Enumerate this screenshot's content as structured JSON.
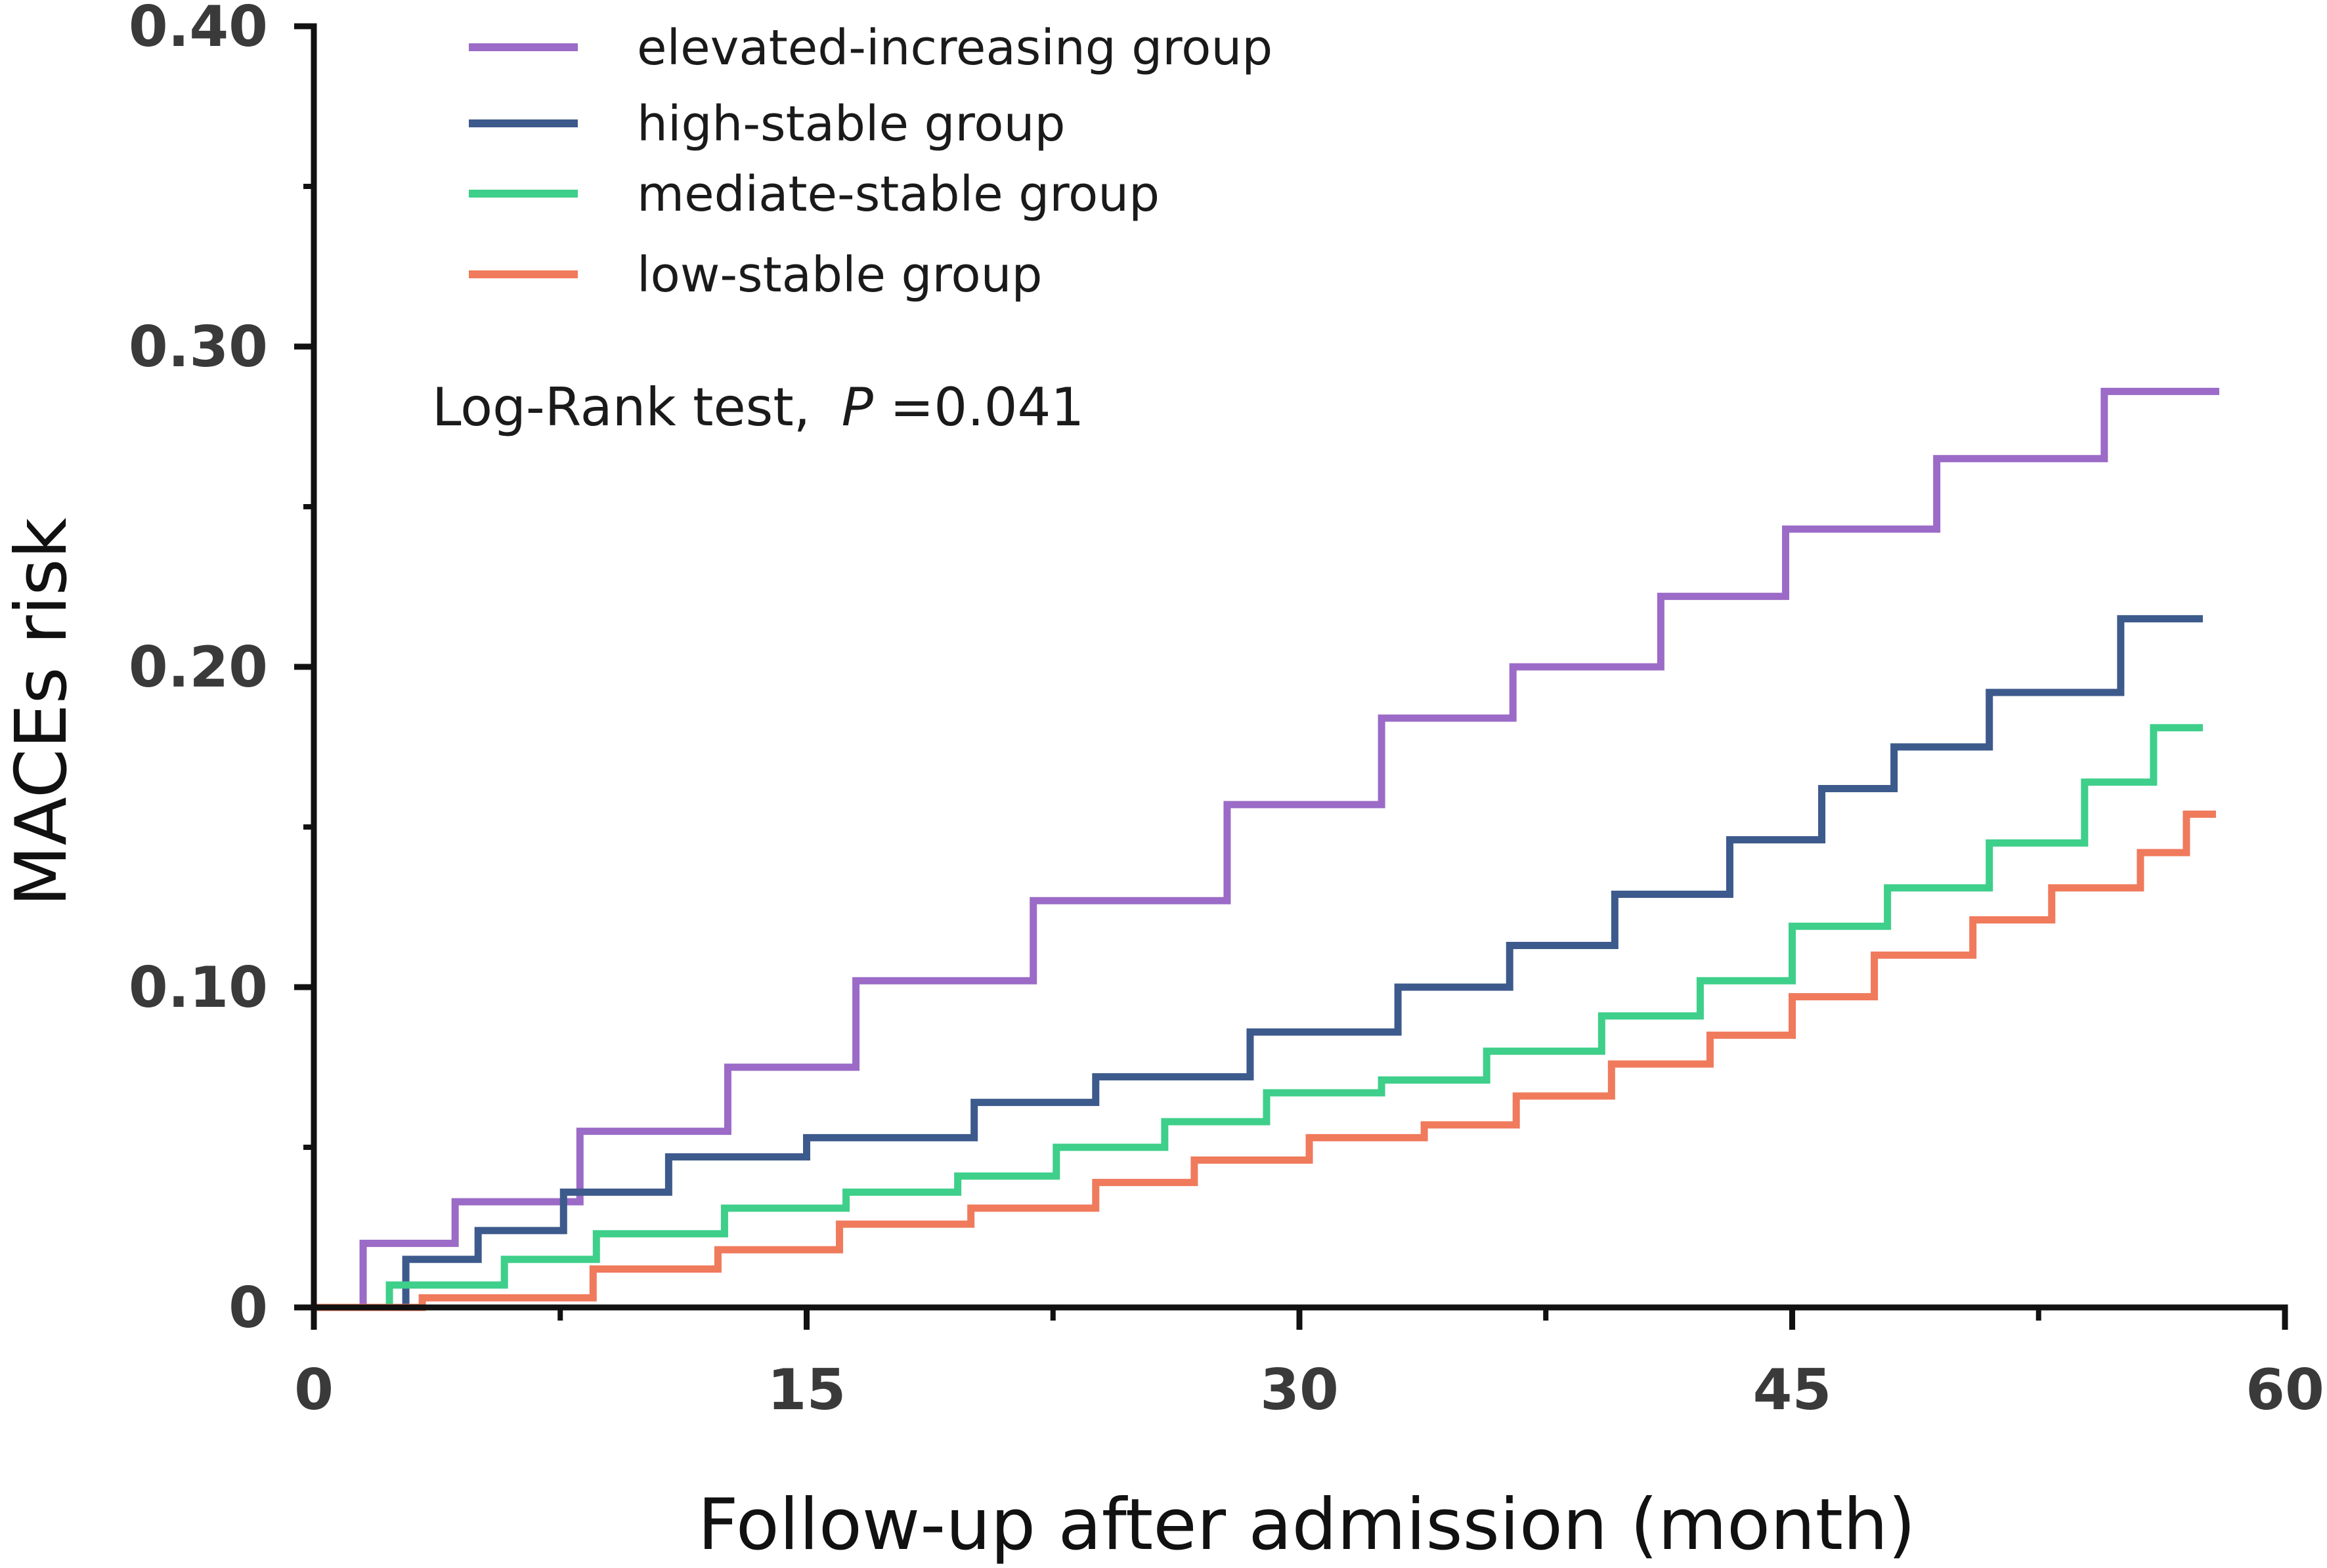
{
  "chart_data": {
    "type": "line",
    "step": true,
    "title": "",
    "xlabel": "Follow-up after admission (month)",
    "ylabel": "MACEs risk",
    "xlim": [
      0,
      60
    ],
    "ylim": [
      0,
      0.4
    ],
    "x_ticks": [
      0,
      15,
      30,
      45,
      60
    ],
    "x_tick_labels": [
      "0",
      "15",
      "30",
      "45",
      "60"
    ],
    "y_ticks": [
      0,
      0.1,
      0.2,
      0.3,
      0.4
    ],
    "y_tick_labels": [
      "0",
      "0.10",
      "0.20",
      "0.30",
      "0.40"
    ],
    "grid": false,
    "legend_position": "top-left",
    "annotation": {
      "prefix": "Log-Rank test,",
      "p_symbol": "P",
      "p_value": "=0.041"
    },
    "series": [
      {
        "name": "elevated-increasing group",
        "color": "#9b6bc7",
        "x": [
          0,
          1.5,
          4.3,
          8.1,
          12.6,
          16.5,
          21.9,
          27.8,
          32.5,
          36.5,
          41.0,
          44.8,
          49.4,
          54.5,
          58.0
        ],
        "y": [
          0,
          0.02,
          0.033,
          0.055,
          0.075,
          0.102,
          0.127,
          0.157,
          0.184,
          0.2,
          0.222,
          0.243,
          0.265,
          0.286,
          0.286
        ]
      },
      {
        "name": "high-stable group",
        "color": "#3d5a8c",
        "x": [
          0,
          2.8,
          5.0,
          7.6,
          10.8,
          15.0,
          20.1,
          23.8,
          28.5,
          33.0,
          36.4,
          39.6,
          43.1,
          45.9,
          48.1,
          51.0,
          55.0,
          57.5
        ],
        "y": [
          0,
          0.015,
          0.024,
          0.036,
          0.047,
          0.053,
          0.064,
          0.072,
          0.086,
          0.1,
          0.113,
          0.129,
          0.146,
          0.162,
          0.175,
          0.192,
          0.215,
          0.215
        ]
      },
      {
        "name": "mediate-stable group",
        "color": "#3ecf8a",
        "x": [
          0,
          2.3,
          5.8,
          8.6,
          12.5,
          16.2,
          19.6,
          22.6,
          25.9,
          29.0,
          32.5,
          35.7,
          39.2,
          42.2,
          45.0,
          47.9,
          51.0,
          53.9,
          56.0,
          57.5
        ],
        "y": [
          0,
          0.007,
          0.015,
          0.023,
          0.031,
          0.036,
          0.041,
          0.05,
          0.058,
          0.067,
          0.071,
          0.08,
          0.091,
          0.102,
          0.119,
          0.131,
          0.145,
          0.164,
          0.181,
          0.181
        ]
      },
      {
        "name": "low-stable group",
        "color": "#f07a5c",
        "x": [
          0,
          3.3,
          8.5,
          12.3,
          16.0,
          20.0,
          23.8,
          26.8,
          30.3,
          33.8,
          36.6,
          39.5,
          42.5,
          45.0,
          47.5,
          50.5,
          52.9,
          55.6,
          57.0,
          57.9
        ],
        "y": [
          0,
          0.003,
          0.012,
          0.018,
          0.026,
          0.031,
          0.039,
          0.046,
          0.053,
          0.057,
          0.066,
          0.076,
          0.085,
          0.097,
          0.11,
          0.121,
          0.131,
          0.142,
          0.154,
          0.154
        ]
      }
    ]
  }
}
